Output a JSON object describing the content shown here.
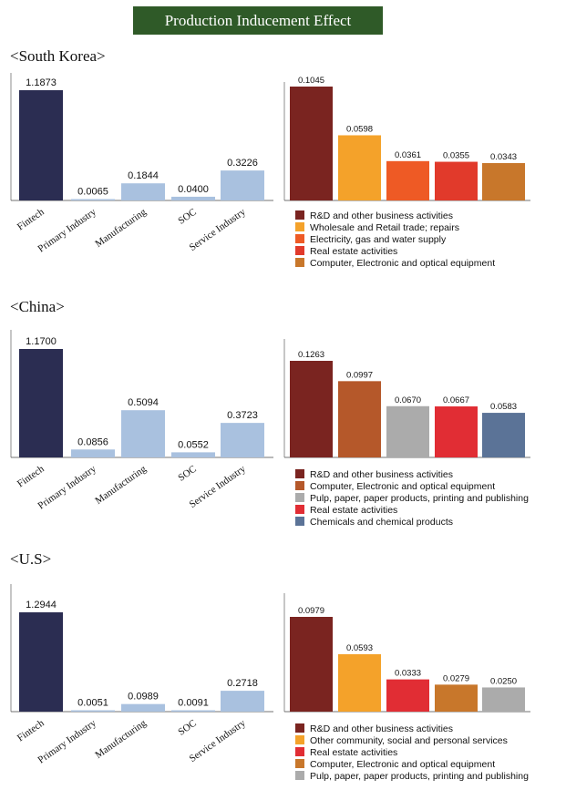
{
  "header": {
    "title": "Production Inducement Effect"
  },
  "colors": {
    "fintech": "#2b2d52",
    "sector": "#a9c1df"
  },
  "chart_data": [
    {
      "type": "bar",
      "panel": "South Korea - by sector",
      "country_label": "<South Korea>",
      "categories": [
        "Fintech",
        "Primary Industry",
        "Manufacturing",
        "SOC",
        "Service Industry"
      ],
      "values": [
        1.1873,
        0.0065,
        0.1844,
        0.04,
        0.3226
      ],
      "labels": [
        "1.1873",
        "0.0065",
        "0.1844",
        "0.0400",
        "0.3226"
      ]
    },
    {
      "type": "bar",
      "panel": "South Korea - top industries",
      "legend_position": "bottom",
      "series": [
        {
          "name": "R&D and other business activities",
          "value": 0.1045,
          "label": "0.1045",
          "color": "#7a2420"
        },
        {
          "name": "Wholesale and Retail trade; repairs",
          "value": 0.0598,
          "label": "0.0598",
          "color": "#f4a22a"
        },
        {
          "name": "Electricity, gas and water supply",
          "value": 0.0361,
          "label": "0.0361",
          "color": "#ee5a25"
        },
        {
          "name": "Real estate activities",
          "value": 0.0355,
          "label": "0.0355",
          "color": "#e13a2b"
        },
        {
          "name": "Computer, Electronic and optical equipment",
          "value": 0.0343,
          "label": "0.0343",
          "color": "#c8772b"
        }
      ]
    },
    {
      "type": "bar",
      "panel": "China - by sector",
      "country_label": "<China>",
      "categories": [
        "Fintech",
        "Primary Industry",
        "Manufacturing",
        "SOC",
        "Service Industry"
      ],
      "values": [
        1.17,
        0.0856,
        0.5094,
        0.0552,
        0.3723
      ],
      "labels": [
        "1.1700",
        "0.0856",
        "0.5094",
        "0.0552",
        "0.3723"
      ]
    },
    {
      "type": "bar",
      "panel": "China - top industries",
      "legend_position": "bottom",
      "series": [
        {
          "name": "R&D and other business activities",
          "value": 0.1263,
          "label": "0.1263",
          "color": "#7a2420"
        },
        {
          "name": "Computer, Electronic and optical equipment",
          "value": 0.0997,
          "label": "0.0997",
          "color": "#b5582a"
        },
        {
          "name": "Pulp, paper, paper products, printing and publishing",
          "value": 0.067,
          "label": "0.0670",
          "color": "#ababab"
        },
        {
          "name": "Real estate activities",
          "value": 0.0667,
          "label": "0.0667",
          "color": "#e12d34"
        },
        {
          "name": "Chemicals and chemical products",
          "value": 0.0583,
          "label": "0.0583",
          "color": "#5b7397"
        }
      ]
    },
    {
      "type": "bar",
      "panel": "U.S - by sector",
      "country_label": "<U.S>",
      "categories": [
        "Fintech",
        "Primary Industry",
        "Manufacturing",
        "SOC",
        "Service Industry"
      ],
      "values": [
        1.2944,
        0.0051,
        0.0989,
        0.0091,
        0.2718
      ],
      "labels": [
        "1.2944",
        "0.0051",
        "0.0989",
        "0.0091",
        "0.2718"
      ]
    },
    {
      "type": "bar",
      "panel": "U.S - top industries",
      "legend_position": "bottom",
      "series": [
        {
          "name": "R&D and other business activities",
          "value": 0.0979,
          "label": "0.0979",
          "color": "#7a2420"
        },
        {
          "name": "Other community, social and personal services",
          "value": 0.0593,
          "label": "0.0593",
          "color": "#f4a22a"
        },
        {
          "name": "Real estate activities",
          "value": 0.0333,
          "label": "0.0333",
          "color": "#e12d34"
        },
        {
          "name": "Computer, Electronic and optical equipment",
          "value": 0.0279,
          "label": "0.0279",
          "color": "#c8772b"
        },
        {
          "name": "Pulp, paper, paper products, printing and publishing",
          "value": 0.025,
          "label": "0.0250",
          "color": "#ababab"
        }
      ]
    }
  ]
}
